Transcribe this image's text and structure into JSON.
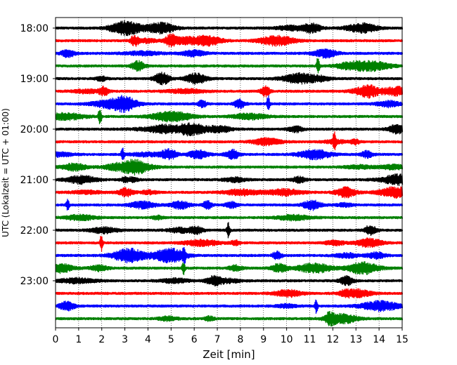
{
  "chart_data": {
    "type": "line",
    "title": "",
    "xlabel": "Zeit  [min]",
    "ylabel": "UTC (Lokalzeit = UTC + 01:00)",
    "xlim": [
      0,
      15
    ],
    "x_ticks": [
      0,
      1,
      2,
      3,
      4,
      5,
      6,
      7,
      8,
      9,
      10,
      11,
      12,
      13,
      14,
      15
    ],
    "x_grid": true,
    "y_ticks": [
      "18:00",
      "19:00",
      "20:00",
      "21:00",
      "22:00",
      "23:00"
    ],
    "trace_interval_min": 15,
    "trace_starts": [
      "18:00",
      "18:15",
      "18:30",
      "18:45",
      "19:00",
      "19:15",
      "19:30",
      "19:45",
      "20:00",
      "20:15",
      "20:30",
      "20:45",
      "21:00",
      "21:15",
      "21:30",
      "21:45",
      "22:00",
      "22:15",
      "22:30",
      "22:45",
      "23:00",
      "23:15",
      "23:30",
      "23:45"
    ],
    "trace_color_cycle": [
      "#000000",
      "#ff0000",
      "#0000ff",
      "#008000"
    ]
  }
}
